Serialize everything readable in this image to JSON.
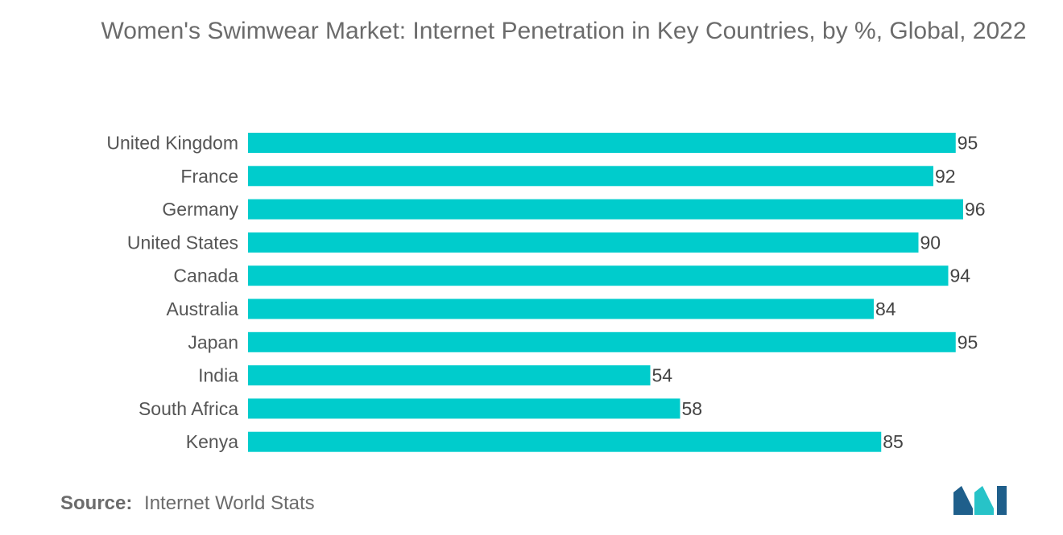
{
  "chart_data": {
    "type": "bar",
    "orientation": "horizontal",
    "title": "Women's Swimwear Market: Internet Penetration in Key Countries, by %, Global, 2022",
    "categories": [
      "United Kingdom",
      "France",
      "Germany",
      "United States",
      "Canada",
      "Australia",
      "Japan",
      "India",
      "South Africa",
      "Kenya"
    ],
    "values": [
      95,
      92,
      96,
      90,
      94,
      84,
      95,
      54,
      58,
      85
    ],
    "xlim": [
      0,
      96
    ],
    "grid": false,
    "legend": "none",
    "bar_color": "#00cccc"
  },
  "footer": {
    "source_label": "Source:",
    "source_text": "Internet World Stats"
  },
  "logo": {
    "icon": "mordor-intelligence-logo-icon",
    "colors": [
      "#1f5f8b",
      "#27c3c8"
    ]
  }
}
